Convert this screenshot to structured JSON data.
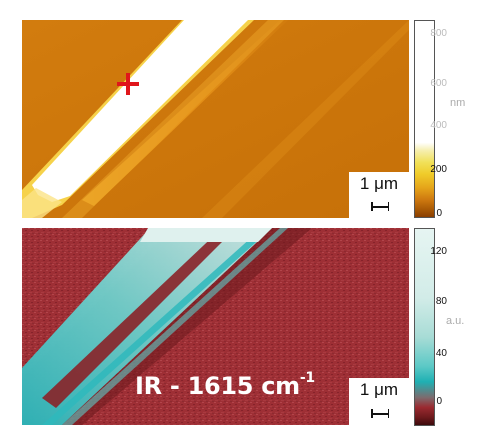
{
  "afm_panel": {
    "marker": "red-cross-marker",
    "scale_bar": {
      "label": "1 μm"
    },
    "colorbar": {
      "unit": "nm",
      "ticks": [
        "800",
        "600",
        "400",
        "200",
        "0"
      ],
      "colors": [
        "#ffffff",
        "#f1e15a",
        "#cf7a10",
        "#8a3e00"
      ]
    }
  },
  "ir_panel": {
    "title_main": "IR - 1615 cm",
    "title_exp": "-1",
    "scale_bar": {
      "label": "1 μm"
    },
    "colorbar": {
      "unit": "a.u.",
      "ticks": [
        "120",
        "80",
        "40",
        "0"
      ],
      "colors": [
        "#e6f5f2",
        "#1fb0b3",
        "#9b2a30",
        "#3d0a0c"
      ]
    }
  }
}
